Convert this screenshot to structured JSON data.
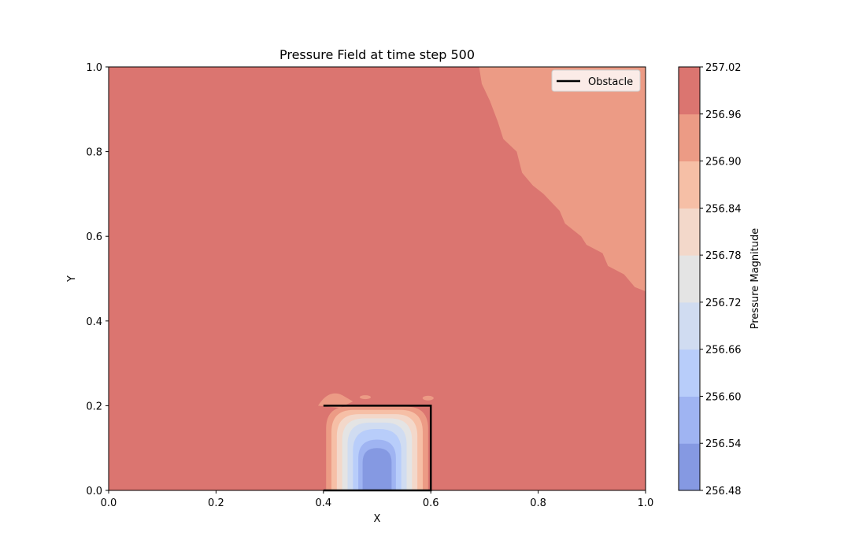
{
  "chart_data": {
    "type": "heatmap",
    "subtype": "filled-contour",
    "title": "Pressure Field at time step 500",
    "xlabel": "X",
    "ylabel": "Y",
    "xlim": [
      0.0,
      1.0
    ],
    "ylim": [
      0.0,
      1.0
    ],
    "x_ticks": [
      "0.0",
      "0.2",
      "0.4",
      "0.6",
      "0.8",
      "1.0"
    ],
    "y_ticks": [
      "0.0",
      "0.2",
      "0.4",
      "0.6",
      "0.8",
      "1.0"
    ],
    "grid": false,
    "legend": {
      "position": "top-right",
      "entries": [
        "Obstacle"
      ],
      "line_color": "#000000"
    },
    "obstacle": {
      "x": [
        0.4,
        0.6,
        0.6,
        0.4
      ],
      "y": [
        0.0,
        0.0,
        0.2,
        0.2
      ]
    },
    "colorbar": {
      "label": "Pressure Magnitude",
      "levels": [
        "256.48",
        "256.54",
        "256.60",
        "256.66",
        "256.72",
        "256.78",
        "256.84",
        "256.90",
        "256.96",
        "257.02"
      ],
      "colors": [
        "#8599e2",
        "#9fb4f2",
        "#b8cdfa",
        "#d0dcf1",
        "#e4e4e4",
        "#f3d8ca",
        "#f6bfa6",
        "#ec9b85",
        "#db7570"
      ]
    },
    "field": {
      "background_level_color": "#db7570",
      "upper_right_region": {
        "level_color": "#ec9b85",
        "boundary": [
          [
            0.69,
            1.0
          ],
          [
            0.695,
            0.96
          ],
          [
            0.71,
            0.92
          ],
          [
            0.725,
            0.87
          ],
          [
            0.735,
            0.83
          ],
          [
            0.76,
            0.8
          ],
          [
            0.77,
            0.75
          ],
          [
            0.79,
            0.72
          ],
          [
            0.81,
            0.7
          ],
          [
            0.84,
            0.66
          ],
          [
            0.85,
            0.63
          ],
          [
            0.88,
            0.6
          ],
          [
            0.89,
            0.58
          ],
          [
            0.92,
            0.56
          ],
          [
            0.93,
            0.53
          ],
          [
            0.96,
            0.51
          ],
          [
            0.98,
            0.48
          ],
          [
            1.0,
            0.47
          ]
        ]
      },
      "obstacle_levels": [
        {
          "color": "#ec9b85",
          "x": [
            0.405,
            0.595
          ],
          "ytop": 0.198
        },
        {
          "color": "#f6bfa6",
          "x": [
            0.415,
            0.585
          ],
          "ytop": 0.19
        },
        {
          "color": "#f3d8ca",
          "x": [
            0.425,
            0.575
          ],
          "ytop": 0.18
        },
        {
          "color": "#e4e4e4",
          "x": [
            0.435,
            0.565
          ],
          "ytop": 0.17
        },
        {
          "color": "#d0dcf1",
          "x": [
            0.445,
            0.555
          ],
          "ytop": 0.16
        },
        {
          "color": "#b8cdfa",
          "x": [
            0.455,
            0.545
          ],
          "ytop": 0.145
        },
        {
          "color": "#9fb4f2",
          "x": [
            0.465,
            0.535
          ],
          "ytop": 0.12
        },
        {
          "color": "#8599e2",
          "x": [
            0.473,
            0.527
          ],
          "ytop": 0.1
        }
      ]
    }
  }
}
